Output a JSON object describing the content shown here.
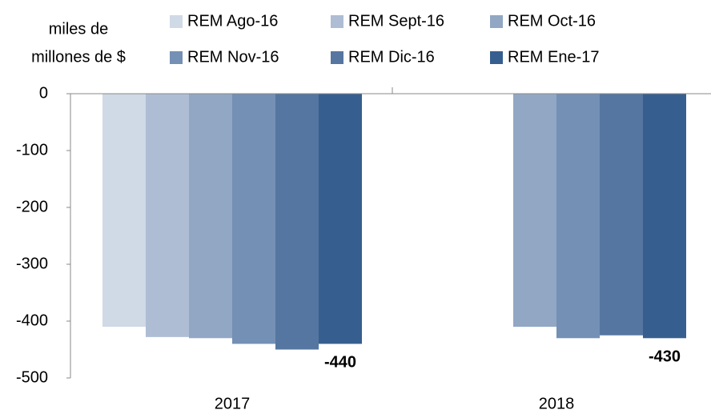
{
  "chart_data": {
    "type": "bar",
    "y_label": [
      "miles de",
      "millones de $"
    ],
    "categories": [
      "2017",
      "2018"
    ],
    "series": [
      {
        "name": "REM Ago-16",
        "color": "#d0d9e6",
        "values": [
          -410,
          null
        ]
      },
      {
        "name": "REM Sept-16",
        "color": "#aebdd4",
        "values": [
          -428,
          null
        ]
      },
      {
        "name": "REM Oct-16",
        "color": "#91a7c4",
        "values": [
          -430,
          -410
        ]
      },
      {
        "name": "REM Nov-16",
        "color": "#7490b4",
        "values": [
          -440,
          -430
        ]
      },
      {
        "name": "REM Dic-16",
        "color": "#5576a0",
        "values": [
          -450,
          -425
        ]
      },
      {
        "name": "REM Ene-17",
        "color": "#365f8f",
        "values": [
          -440,
          -430
        ],
        "show_values": true
      }
    ],
    "ylim": [
      -500,
      0
    ],
    "yticks": [
      0,
      -100,
      -200,
      -300,
      -400,
      -500
    ],
    "grid": false
  }
}
